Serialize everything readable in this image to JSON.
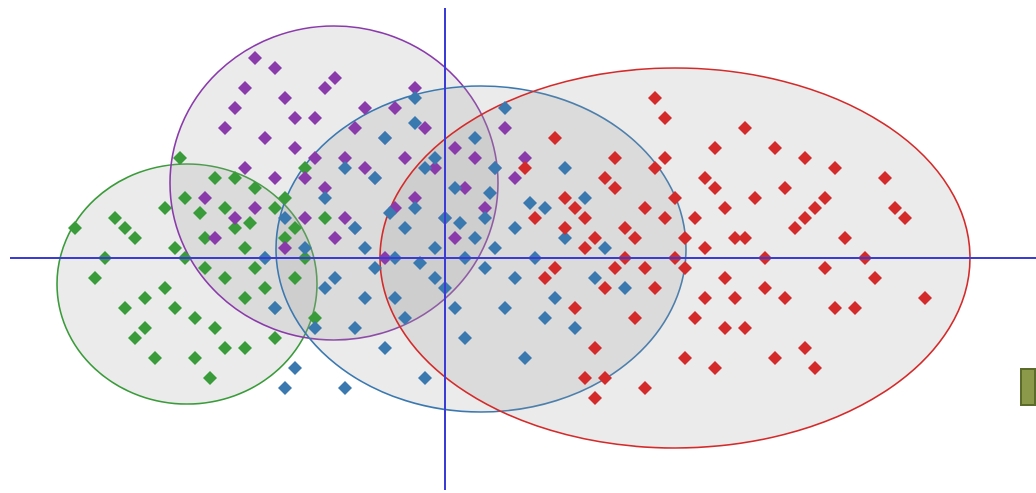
{
  "chart_data": {
    "type": "scatter",
    "title": "",
    "xlabel": "",
    "ylabel": "",
    "xlim": [
      -4.4,
      5.5
    ],
    "ylim": [
      -2.3,
      2.3
    ],
    "grid": false,
    "axis_color": "#3b3bd6",
    "marker": "diamond",
    "legend_swatch_color": "#8a9a4a",
    "series": [
      {
        "color": "#3a9b3a",
        "ellipse": {
          "cx": -2.58,
          "cy": -0.26,
          "rx": 1.3,
          "ry": 1.2
        },
        "points": [
          [
            -3.3,
            0.4
          ],
          [
            -3.2,
            0.3
          ],
          [
            -3.1,
            0.2
          ],
          [
            -3.4,
            0.0
          ],
          [
            -3.5,
            -0.2
          ],
          [
            -3.2,
            -0.5
          ],
          [
            -3.0,
            -0.7
          ],
          [
            -2.9,
            -1.0
          ],
          [
            -2.8,
            -0.3
          ],
          [
            -2.7,
            0.1
          ],
          [
            -2.6,
            0.6
          ],
          [
            -2.5,
            -0.6
          ],
          [
            -2.4,
            -0.1
          ],
          [
            -2.3,
            0.8
          ],
          [
            -2.2,
            -0.9
          ],
          [
            -2.1,
            0.3
          ],
          [
            -2.0,
            -0.4
          ],
          [
            -1.9,
            0.7
          ],
          [
            -1.8,
            0.0
          ],
          [
            -1.7,
            -0.8
          ],
          [
            -1.7,
            0.5
          ],
          [
            -1.6,
            0.2
          ],
          [
            -1.5,
            -0.2
          ],
          [
            -1.4,
            0.9
          ],
          [
            -1.3,
            -0.6
          ],
          [
            -1.2,
            0.4
          ],
          [
            -2.6,
            0.0
          ],
          [
            -2.4,
            0.2
          ],
          [
            -2.2,
            -0.2
          ],
          [
            -2.0,
            0.1
          ],
          [
            -1.8,
            -0.3
          ],
          [
            -1.6,
            0.6
          ],
          [
            -3.0,
            -0.4
          ],
          [
            -2.8,
            0.5
          ],
          [
            -2.3,
            -0.7
          ],
          [
            -2.1,
            0.8
          ],
          [
            -1.9,
            -0.1
          ],
          [
            -1.5,
            0.3
          ],
          [
            -2.5,
            -1.0
          ],
          [
            -2.7,
            -0.5
          ],
          [
            -1.4,
            0.0
          ],
          [
            -1.7,
            -0.5
          ],
          [
            -2.2,
            0.5
          ],
          [
            -2.0,
            -0.9
          ],
          [
            -3.1,
            -0.8
          ],
          [
            -2.35,
            -1.2
          ],
          [
            -2.65,
            1.0
          ],
          [
            -1.95,
            0.35
          ],
          [
            -2.45,
            0.45
          ],
          [
            -3.7,
            0.3
          ]
        ]
      },
      {
        "color": "#8a3aaa",
        "ellipse": {
          "cx": -1.11,
          "cy": 0.75,
          "rx": 1.64,
          "ry": 1.57
        },
        "points": [
          [
            -2.2,
            1.3
          ],
          [
            -2.1,
            1.5
          ],
          [
            -2.0,
            0.9
          ],
          [
            -1.9,
            2.0
          ],
          [
            -1.8,
            1.2
          ],
          [
            -1.7,
            0.8
          ],
          [
            -1.6,
            1.6
          ],
          [
            -1.5,
            1.1
          ],
          [
            -1.4,
            0.4
          ],
          [
            -1.3,
            1.4
          ],
          [
            -1.2,
            0.7
          ],
          [
            -1.1,
            1.8
          ],
          [
            -1.0,
            1.0
          ],
          [
            -0.9,
            0.3
          ],
          [
            -0.8,
            1.5
          ],
          [
            -0.7,
            0.8
          ],
          [
            -0.6,
            1.2
          ],
          [
            -0.5,
            0.5
          ],
          [
            -0.4,
            1.0
          ],
          [
            -0.3,
            0.6
          ],
          [
            -0.2,
            1.3
          ],
          [
            -0.1,
            0.9
          ],
          [
            0.0,
            0.4
          ],
          [
            0.1,
            1.1
          ],
          [
            0.2,
            0.7
          ],
          [
            0.3,
            1.0
          ],
          [
            0.4,
            0.5
          ],
          [
            0.6,
            1.3
          ],
          [
            0.7,
            0.8
          ],
          [
            0.8,
            1.0
          ],
          [
            -2.4,
            0.6
          ],
          [
            -2.3,
            0.2
          ],
          [
            -1.9,
            0.5
          ],
          [
            -1.6,
            0.1
          ],
          [
            -1.4,
            0.8
          ],
          [
            -1.0,
            0.4
          ],
          [
            -0.8,
            0.9
          ],
          [
            -0.5,
            1.5
          ],
          [
            -1.2,
            1.7
          ],
          [
            -1.7,
            1.9
          ],
          [
            -2.1,
            0.4
          ],
          [
            -0.3,
            1.7
          ],
          [
            0.1,
            0.2
          ],
          [
            -0.6,
            0.0
          ],
          [
            -1.3,
            1.0
          ],
          [
            -1.1,
            0.2
          ],
          [
            -0.9,
            1.3
          ],
          [
            -2.0,
            1.7
          ],
          [
            -1.5,
            1.4
          ],
          [
            0.5,
            0.9
          ]
        ]
      },
      {
        "color": "#3a78b0",
        "ellipse": {
          "cx": 0.36,
          "cy": 0.09,
          "rx": 2.05,
          "ry": 1.63
        },
        "points": [
          [
            -1.8,
            0.0
          ],
          [
            -1.7,
            -0.5
          ],
          [
            -1.6,
            0.4
          ],
          [
            -1.5,
            -1.1
          ],
          [
            -1.4,
            0.1
          ],
          [
            -1.3,
            -0.7
          ],
          [
            -1.2,
            0.6
          ],
          [
            -1.1,
            -0.2
          ],
          [
            -1.0,
            -1.3
          ],
          [
            -0.9,
            0.3
          ],
          [
            -0.8,
            -0.4
          ],
          [
            -0.7,
            0.8
          ],
          [
            -0.6,
            -0.9
          ],
          [
            -0.5,
            0.0
          ],
          [
            -0.4,
            -0.6
          ],
          [
            -0.3,
            0.5
          ],
          [
            -0.2,
            -1.2
          ],
          [
            -0.1,
            0.1
          ],
          [
            0.0,
            -0.3
          ],
          [
            0.1,
            0.7
          ],
          [
            0.2,
            -0.8
          ],
          [
            0.3,
            0.2
          ],
          [
            0.4,
            -0.1
          ],
          [
            0.5,
            0.9
          ],
          [
            0.6,
            -0.5
          ],
          [
            0.7,
            0.3
          ],
          [
            0.8,
            -1.0
          ],
          [
            0.9,
            0.0
          ],
          [
            1.0,
            0.5
          ],
          [
            1.1,
            -0.4
          ],
          [
            1.2,
            0.2
          ],
          [
            1.3,
            -0.7
          ],
          [
            1.4,
            0.6
          ],
          [
            1.5,
            -0.2
          ],
          [
            1.6,
            0.1
          ],
          [
            1.8,
            -0.3
          ],
          [
            -1.0,
            0.9
          ],
          [
            -0.6,
            1.2
          ],
          [
            -0.2,
            0.9
          ],
          [
            0.3,
            1.2
          ],
          [
            0.6,
            1.5
          ],
          [
            -0.3,
            1.6
          ],
          [
            0.0,
            0.4
          ],
          [
            0.2,
            0.0
          ],
          [
            -0.5,
            -0.4
          ],
          [
            -0.1,
            -0.2
          ],
          [
            0.4,
            0.4
          ],
          [
            -0.8,
            0.1
          ],
          [
            0.7,
            -0.2
          ],
          [
            1.0,
            -0.6
          ],
          [
            -1.2,
            -0.3
          ],
          [
            -0.4,
            0.3
          ],
          [
            0.1,
            -0.5
          ],
          [
            0.5,
            0.1
          ],
          [
            -0.7,
            -0.1
          ],
          [
            0.85,
            0.55
          ],
          [
            -0.25,
            -0.05
          ],
          [
            0.15,
            0.35
          ],
          [
            -0.55,
            0.45
          ],
          [
            -1.6,
            -1.3
          ],
          [
            -0.9,
            -0.7
          ],
          [
            -0.3,
            1.35
          ],
          [
            0.45,
            0.65
          ],
          [
            -0.1,
            1.0
          ],
          [
            1.2,
            0.9
          ]
        ]
      },
      {
        "color": "#d42a2a",
        "ellipse": {
          "cx": 2.3,
          "cy": 0.0,
          "rx": 2.95,
          "ry": 1.9
        },
        "points": [
          [
            0.8,
            0.9
          ],
          [
            0.9,
            0.4
          ],
          [
            1.0,
            -0.2
          ],
          [
            1.1,
            1.2
          ],
          [
            1.2,
            0.6
          ],
          [
            1.3,
            -0.5
          ],
          [
            1.4,
            0.1
          ],
          [
            1.5,
            -0.9
          ],
          [
            1.6,
            0.8
          ],
          [
            1.7,
            -0.1
          ],
          [
            1.8,
            0.3
          ],
          [
            1.9,
            -0.6
          ],
          [
            2.0,
            0.5
          ],
          [
            2.1,
            -0.3
          ],
          [
            2.2,
            1.0
          ],
          [
            2.3,
            0.0
          ],
          [
            2.4,
            -1.0
          ],
          [
            2.5,
            0.4
          ],
          [
            2.6,
            -0.4
          ],
          [
            2.7,
            0.7
          ],
          [
            2.8,
            -0.2
          ],
          [
            2.9,
            0.2
          ],
          [
            3.0,
            -0.7
          ],
          [
            3.1,
            0.6
          ],
          [
            3.2,
            0.0
          ],
          [
            3.3,
            1.1
          ],
          [
            3.4,
            -0.4
          ],
          [
            3.5,
            0.3
          ],
          [
            3.6,
            -0.9
          ],
          [
            3.7,
            0.5
          ],
          [
            3.8,
            -0.1
          ],
          [
            3.9,
            0.9
          ],
          [
            4.0,
            0.2
          ],
          [
            4.1,
            -0.5
          ],
          [
            4.2,
            0.0
          ],
          [
            4.5,
            0.5
          ],
          [
            4.8,
            -0.4
          ],
          [
            2.1,
            1.6
          ],
          [
            2.2,
            1.4
          ],
          [
            1.7,
            1.0
          ],
          [
            2.7,
            1.1
          ],
          [
            3.0,
            1.3
          ],
          [
            3.6,
            1.0
          ],
          [
            4.4,
            0.8
          ],
          [
            1.6,
            -1.2
          ],
          [
            1.4,
            -1.2
          ],
          [
            1.5,
            -1.4
          ],
          [
            2.0,
            -1.3
          ],
          [
            2.7,
            -1.1
          ],
          [
            3.3,
            -1.0
          ],
          [
            3.7,
            -1.1
          ],
          [
            1.3,
            0.5
          ],
          [
            1.5,
            0.2
          ],
          [
            1.8,
            0.0
          ],
          [
            2.2,
            0.4
          ],
          [
            2.4,
            -0.1
          ],
          [
            2.8,
            0.5
          ],
          [
            2.6,
            0.1
          ],
          [
            1.9,
            0.2
          ],
          [
            2.0,
            -0.1
          ],
          [
            2.3,
            0.6
          ],
          [
            2.5,
            -0.6
          ],
          [
            2.9,
            -0.4
          ],
          [
            3.4,
            0.7
          ],
          [
            3.2,
            -0.3
          ],
          [
            1.2,
            0.3
          ],
          [
            1.7,
            0.7
          ],
          [
            2.1,
            0.9
          ],
          [
            3.8,
            0.6
          ],
          [
            4.3,
            -0.2
          ],
          [
            1.1,
            -0.1
          ],
          [
            1.4,
            0.4
          ],
          [
            1.6,
            -0.3
          ],
          [
            2.6,
            0.8
          ],
          [
            3.0,
            0.2
          ],
          [
            3.6,
            0.4
          ],
          [
            3.9,
            -0.5
          ],
          [
            4.6,
            0.4
          ],
          [
            2.4,
            0.2
          ],
          [
            2.8,
            -0.7
          ]
        ]
      }
    ]
  }
}
